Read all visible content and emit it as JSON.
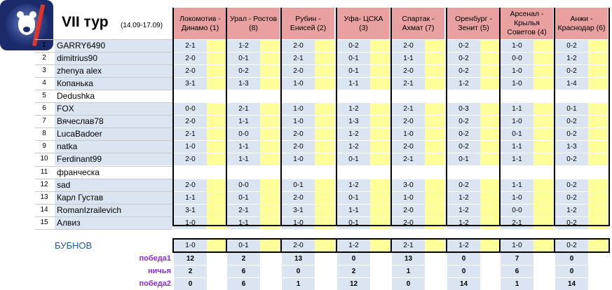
{
  "sheet": {
    "title": "VII тур",
    "dates": "(14.09-17.09)",
    "matches": [
      "Локомотив - Динамо (1)",
      "Урал - Ростов (8)",
      "Рубин - Енисей (2)",
      "Уфа- ЦСКА (3)",
      "Спартак - Ахмат (7)",
      "Оренбург - Зенит (5)",
      "Арсенал - Крылья Советов (4)",
      "Анжи - Краснодар (6)"
    ],
    "rows": [
      {
        "n": "1",
        "name": "GARRY6490",
        "p": [
          "2-1",
          "1-2",
          "2-0",
          "0-2",
          "2-0",
          "0-2",
          "1-0",
          "0-2"
        ]
      },
      {
        "n": "2",
        "name": "dimitrius90",
        "p": [
          "2-0",
          "0-1",
          "2-1",
          "0-1",
          "1-1",
          "0-2",
          "0-0",
          "1-2"
        ]
      },
      {
        "n": "3",
        "name": "zhenya alex",
        "p": [
          "2-0",
          "0-2",
          "2-0",
          "0-1",
          "2-0",
          "0-2",
          "1-0",
          "0-2"
        ]
      },
      {
        "n": "4",
        "name": "Копанька",
        "p": [
          "3-1",
          "1-3",
          "1-0",
          "1-1",
          "2-1",
          "1-2",
          "1-0",
          "1-4"
        ]
      },
      {
        "n": "5",
        "name": "Dedushka",
        "p": [
          "",
          "",
          "",
          "",
          "",
          "",
          "",
          ""
        ]
      },
      {
        "n": "6",
        "name": "FOX",
        "p": [
          "0-0",
          "2-1",
          "1-0",
          "1-2",
          "2-1",
          "0-3",
          "1-1",
          "0-1"
        ]
      },
      {
        "n": "7",
        "name": "Вячеслав78",
        "p": [
          "2-0",
          "1-1",
          "1-0",
          "1-3",
          "2-0",
          "0-2",
          "1-0",
          "0-2"
        ]
      },
      {
        "n": "8",
        "name": "LucaBadoer",
        "p": [
          "2-1",
          "0-0",
          "2-0",
          "1-2",
          "1-0",
          "0-2",
          "0-1",
          "0-2"
        ]
      },
      {
        "n": "9",
        "name": "natka",
        "p": [
          "1-0",
          "1-1",
          "2-0",
          "1-2",
          "2-0",
          "0-2",
          "1-1",
          "1-3"
        ]
      },
      {
        "n": "10",
        "name": "Ferdinant99",
        "p": [
          "2-0",
          "1-1",
          "1-0",
          "0-1",
          "2-1",
          "0-1",
          "1-1",
          "0-2"
        ]
      },
      {
        "n": "11",
        "name": "франческа",
        "p": [
          "",
          "",
          "",
          "",
          "",
          "",
          "",
          ""
        ]
      },
      {
        "n": "12",
        "name": "sad",
        "p": [
          "2-0",
          "0-0",
          "0-1",
          "1-2",
          "3-0",
          "0-2",
          "1-1",
          "0-2"
        ]
      },
      {
        "n": "13",
        "name": "Карл Густав",
        "p": [
          "1-1",
          "0-1",
          "2-0",
          "0-1",
          "1-0",
          "1-2",
          "1-0",
          "0-2"
        ]
      },
      {
        "n": "14",
        "name": "RomanIzrailevich",
        "p": [
          "3-1",
          "2-1",
          "3-1",
          "1-1",
          "2-0",
          "1-2",
          "0-0",
          "1-2"
        ]
      },
      {
        "n": "15",
        "name": "Алвиз",
        "p": [
          "1-0",
          "1-1",
          "1-0",
          "0-1",
          "2-0",
          "1-2",
          "2-1",
          "0-2"
        ]
      }
    ],
    "bubnov": {
      "name": "БУБНОВ",
      "p": [
        "1-0",
        "0-1",
        "2-0",
        "1-2",
        "2-1",
        "1-2",
        "1-0",
        "0-2"
      ]
    },
    "stats": [
      {
        "label": "победа1",
        "v": [
          "12",
          "2",
          "13",
          "0",
          "13",
          "0",
          "7",
          "0"
        ]
      },
      {
        "label": "ничья",
        "v": [
          "2",
          "6",
          "0",
          "2",
          "1",
          "0",
          "6",
          "0"
        ]
      },
      {
        "label": "победа2",
        "v": [
          "0",
          "6",
          "1",
          "12",
          "0",
          "14",
          "1",
          "14"
        ]
      }
    ],
    "colors": {
      "header": "#e8a0a0",
      "cell": "#dbe4f1",
      "yellow": "#ffff99",
      "stat_label": "#8a2be2",
      "bubnov": "#1f5c9e"
    }
  }
}
